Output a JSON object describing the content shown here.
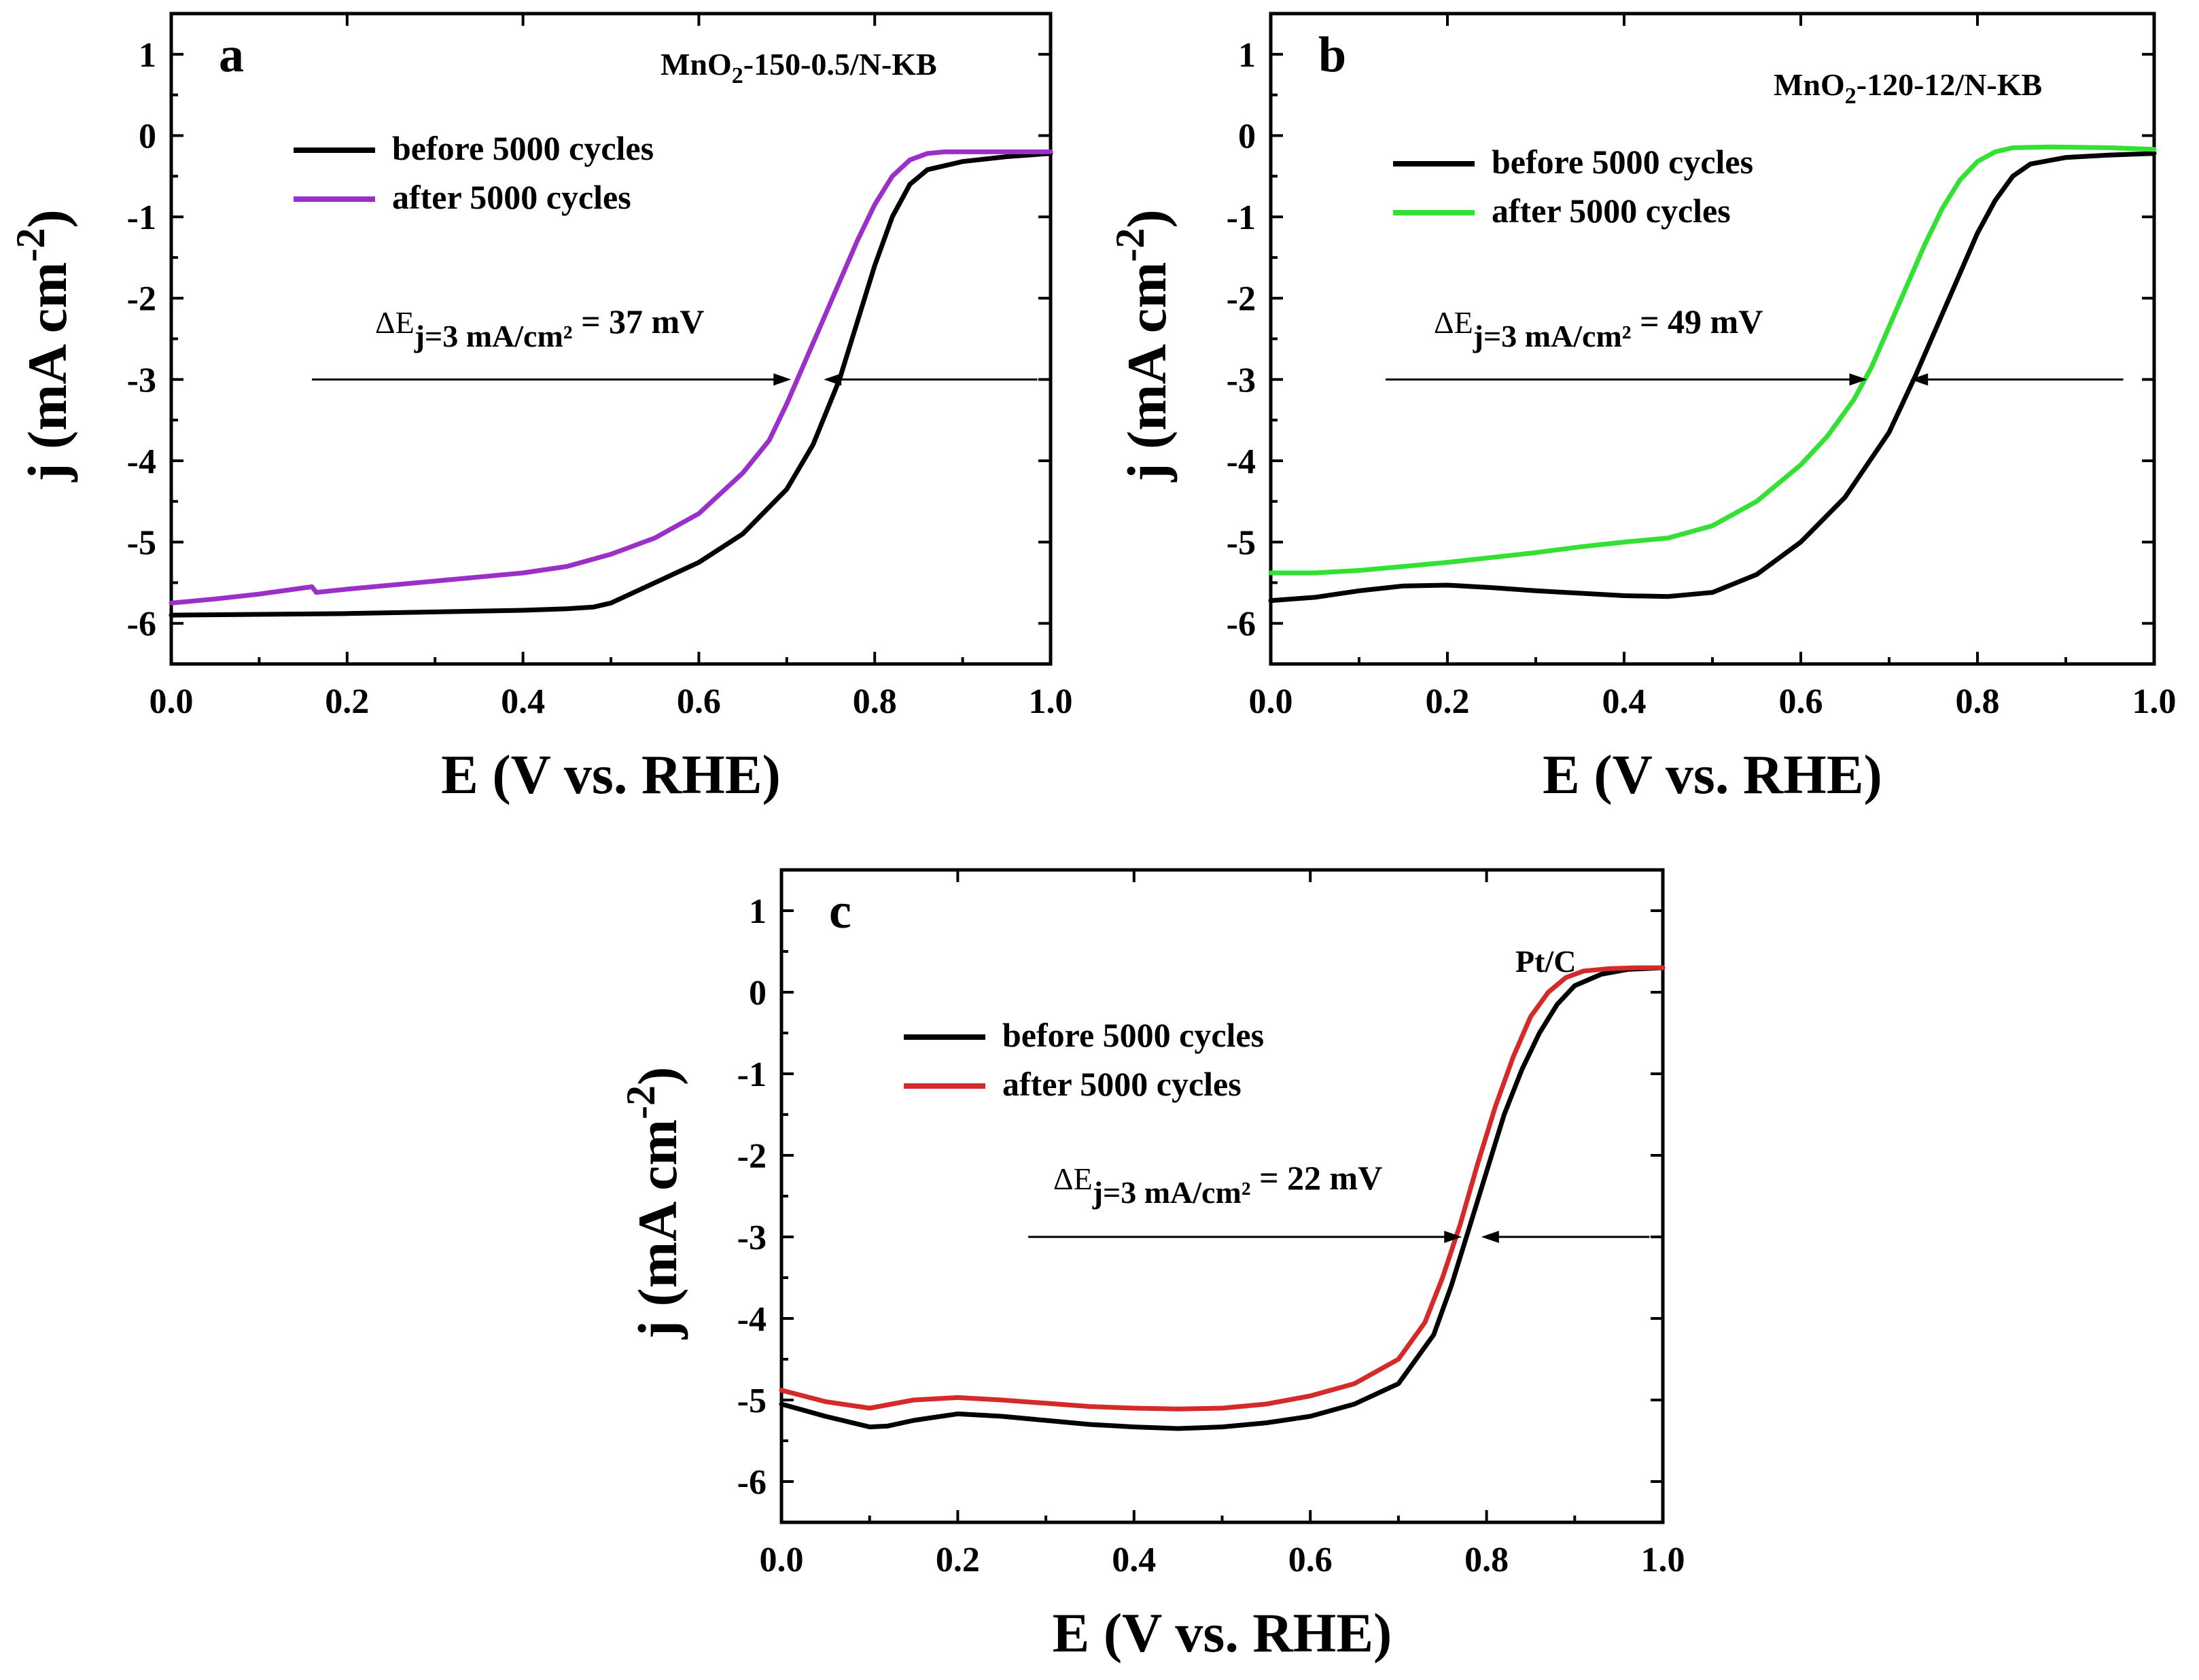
{
  "figure": {
    "background": "#ffffff"
  },
  "chart_data": [
    {
      "panel": "a",
      "type": "line",
      "sample_label": {
        "base": "MnO",
        "sub": "2",
        "rest": "-150-0.5/N-KB"
      },
      "xlabel": "E (V vs. RHE)",
      "ylabel": {
        "base": "j (mA cm",
        "sup": "-2",
        "close": ")"
      },
      "xlim": [
        0.0,
        1.0
      ],
      "ylim": [
        -6.5,
        1.5
      ],
      "xticks": [
        "0.0",
        "0.2",
        "0.4",
        "0.6",
        "0.8",
        "1.0"
      ],
      "yticks": [
        "1",
        "0",
        "-1",
        "-2",
        "-3",
        "-4",
        "-5",
        "-6"
      ],
      "annotation": {
        "delta": "ΔE",
        "sub": "j=3 mA/cm²",
        "value": "= 37 mV",
        "at_j": -3,
        "left_arrow_e": 0.705,
        "right_arrow_e": 0.742,
        "line_start_e": 0.16,
        "line_end_e": 0.985
      },
      "series": [
        {
          "name": "before 5000 cycles",
          "color": "#000000",
          "x": [
            0.0,
            0.1,
            0.2,
            0.3,
            0.4,
            0.45,
            0.48,
            0.5,
            0.55,
            0.6,
            0.65,
            0.7,
            0.73,
            0.76,
            0.78,
            0.8,
            0.82,
            0.84,
            0.86,
            0.9,
            0.95,
            1.0
          ],
          "y": [
            -5.9,
            -5.89,
            -5.88,
            -5.86,
            -5.84,
            -5.82,
            -5.8,
            -5.75,
            -5.5,
            -5.25,
            -4.9,
            -4.35,
            -3.8,
            -3.0,
            -2.3,
            -1.6,
            -1.0,
            -0.6,
            -0.42,
            -0.32,
            -0.26,
            -0.22
          ]
        },
        {
          "name": "after 5000 cycles",
          "color": "#9b30c8",
          "x": [
            0.0,
            0.05,
            0.1,
            0.16,
            0.165,
            0.2,
            0.3,
            0.4,
            0.45,
            0.5,
            0.55,
            0.6,
            0.65,
            0.68,
            0.7,
            0.72,
            0.74,
            0.76,
            0.78,
            0.8,
            0.82,
            0.84,
            0.86,
            0.88,
            0.9,
            0.95,
            1.0
          ],
          "y": [
            -5.75,
            -5.7,
            -5.64,
            -5.55,
            -5.62,
            -5.58,
            -5.48,
            -5.38,
            -5.3,
            -5.15,
            -4.95,
            -4.65,
            -4.15,
            -3.75,
            -3.3,
            -2.8,
            -2.3,
            -1.8,
            -1.3,
            -0.85,
            -0.5,
            -0.3,
            -0.22,
            -0.2,
            -0.2,
            -0.2,
            -0.2
          ]
        }
      ]
    },
    {
      "panel": "b",
      "type": "line",
      "sample_label": {
        "base": "MnO",
        "sub": "2",
        "rest": "-120-12/N-KB"
      },
      "xlabel": "E (V vs. RHE)",
      "ylabel": {
        "base": "j (mA cm",
        "sup": "-2",
        "close": ")"
      },
      "xlim": [
        0.0,
        1.0
      ],
      "ylim": [
        -6.5,
        1.5
      ],
      "xticks": [
        "0.0",
        "0.2",
        "0.4",
        "0.6",
        "0.8",
        "1.0"
      ],
      "yticks": [
        "1",
        "0",
        "-1",
        "-2",
        "-3",
        "-4",
        "-5",
        "-6"
      ],
      "annotation": {
        "delta": "ΔE",
        "sub": "j=3 mA/cm²",
        "value": "= 49 mV",
        "at_j": -3,
        "left_arrow_e": 0.675,
        "right_arrow_e": 0.724,
        "line_start_e": 0.13,
        "line_end_e": 0.965
      },
      "series": [
        {
          "name": "before 5000 cycles",
          "color": "#000000",
          "x": [
            0.0,
            0.05,
            0.1,
            0.15,
            0.2,
            0.25,
            0.3,
            0.35,
            0.4,
            0.45,
            0.5,
            0.55,
            0.6,
            0.65,
            0.7,
            0.73,
            0.76,
            0.8,
            0.82,
            0.84,
            0.86,
            0.9,
            0.95,
            1.0
          ],
          "y": [
            -5.72,
            -5.68,
            -5.6,
            -5.54,
            -5.53,
            -5.56,
            -5.6,
            -5.63,
            -5.66,
            -5.67,
            -5.62,
            -5.4,
            -5.0,
            -4.45,
            -3.65,
            -2.95,
            -2.2,
            -1.2,
            -0.8,
            -0.5,
            -0.35,
            -0.27,
            -0.24,
            -0.22
          ]
        },
        {
          "name": "after 5000 cycles",
          "color": "#33e033",
          "x": [
            0.0,
            0.05,
            0.1,
            0.15,
            0.2,
            0.25,
            0.3,
            0.35,
            0.4,
            0.45,
            0.5,
            0.55,
            0.6,
            0.63,
            0.66,
            0.68,
            0.7,
            0.72,
            0.74,
            0.76,
            0.78,
            0.8,
            0.82,
            0.84,
            0.88,
            0.95,
            1.0
          ],
          "y": [
            -5.38,
            -5.38,
            -5.35,
            -5.3,
            -5.25,
            -5.19,
            -5.13,
            -5.06,
            -5.0,
            -4.95,
            -4.8,
            -4.5,
            -4.05,
            -3.7,
            -3.25,
            -2.85,
            -2.35,
            -1.85,
            -1.35,
            -0.9,
            -0.55,
            -0.32,
            -0.2,
            -0.15,
            -0.14,
            -0.15,
            -0.17
          ]
        }
      ]
    },
    {
      "panel": "c",
      "type": "line",
      "sample_label": {
        "base": "Pt/C",
        "sub": "",
        "rest": ""
      },
      "xlabel": "E (V vs. RHE)",
      "ylabel": {
        "base": "j (mA cm",
        "sup": "-2",
        "close": ")"
      },
      "xlim": [
        0.0,
        1.0
      ],
      "ylim": [
        -6.5,
        1.5
      ],
      "xticks": [
        "0.0",
        "0.2",
        "0.4",
        "0.6",
        "0.8",
        "1.0"
      ],
      "yticks": [
        "1",
        "0",
        "-1",
        "-2",
        "-3",
        "-4",
        "-5",
        "-6"
      ],
      "annotation": {
        "delta": "ΔE",
        "sub": "j=3 mA/cm²",
        "value": "= 22 mV",
        "at_j": -3,
        "left_arrow_e": 0.772,
        "right_arrow_e": 0.794,
        "line_start_e": 0.28,
        "line_end_e": 0.985
      },
      "series": [
        {
          "name": "before 5000 cycles",
          "color": "#000000",
          "x": [
            0.0,
            0.05,
            0.1,
            0.12,
            0.15,
            0.2,
            0.25,
            0.3,
            0.35,
            0.4,
            0.45,
            0.5,
            0.55,
            0.6,
            0.65,
            0.7,
            0.74,
            0.76,
            0.78,
            0.8,
            0.82,
            0.84,
            0.86,
            0.88,
            0.9,
            0.93,
            0.96,
            1.0
          ],
          "y": [
            -5.05,
            -5.2,
            -5.33,
            -5.32,
            -5.25,
            -5.17,
            -5.2,
            -5.25,
            -5.3,
            -5.33,
            -5.35,
            -5.33,
            -5.28,
            -5.2,
            -5.05,
            -4.8,
            -4.2,
            -3.6,
            -2.9,
            -2.2,
            -1.5,
            -0.95,
            -0.5,
            -0.15,
            0.08,
            0.22,
            0.28,
            0.3
          ]
        },
        {
          "name": "after 5000 cycles",
          "color": "#d42a2a",
          "x": [
            0.0,
            0.05,
            0.1,
            0.15,
            0.2,
            0.25,
            0.3,
            0.35,
            0.4,
            0.45,
            0.5,
            0.55,
            0.6,
            0.65,
            0.7,
            0.73,
            0.75,
            0.77,
            0.79,
            0.81,
            0.83,
            0.85,
            0.87,
            0.89,
            0.91,
            0.94,
            0.97,
            1.0
          ],
          "y": [
            -4.88,
            -5.02,
            -5.1,
            -5.0,
            -4.97,
            -5.0,
            -5.04,
            -5.08,
            -5.1,
            -5.11,
            -5.1,
            -5.05,
            -4.95,
            -4.8,
            -4.5,
            -4.05,
            -3.5,
            -2.85,
            -2.1,
            -1.4,
            -0.8,
            -0.3,
            0.0,
            0.18,
            0.26,
            0.29,
            0.3,
            0.3
          ]
        }
      ]
    }
  ]
}
